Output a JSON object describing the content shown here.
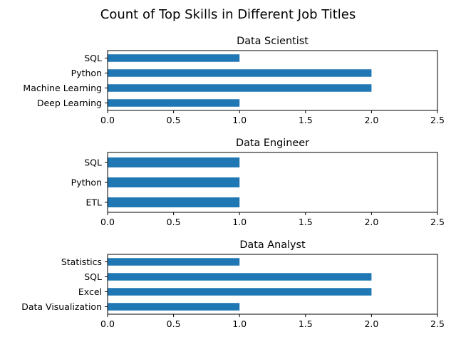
{
  "figure": {
    "title": "Count of Top Skills in Different Job Titles"
  },
  "chart_data": [
    {
      "type": "bar",
      "orientation": "horizontal",
      "title": "Data Scientist",
      "categories": [
        "SQL",
        "Python",
        "Machine Learning",
        "Deep Learning"
      ],
      "values": [
        1,
        2,
        2,
        1
      ],
      "xlim": [
        0,
        2.5
      ],
      "xticks": [
        "0.0",
        "0.5",
        "1.0",
        "1.5",
        "2.0",
        "2.5"
      ],
      "bar_color": "#1f77b4",
      "grid": false
    },
    {
      "type": "bar",
      "orientation": "horizontal",
      "title": "Data Engineer",
      "categories": [
        "SQL",
        "Python",
        "ETL"
      ],
      "values": [
        1,
        1,
        1
      ],
      "xlim": [
        0,
        2.5
      ],
      "xticks": [
        "0.0",
        "0.5",
        "1.0",
        "1.5",
        "2.0",
        "2.5"
      ],
      "bar_color": "#1f77b4",
      "grid": false
    },
    {
      "type": "bar",
      "orientation": "horizontal",
      "title": "Data Analyst",
      "categories": [
        "Statistics",
        "SQL",
        "Excel",
        "Data Visualization"
      ],
      "values": [
        1,
        2,
        2,
        1
      ],
      "xlim": [
        0,
        2.5
      ],
      "xticks": [
        "0.0",
        "0.5",
        "1.0",
        "1.5",
        "2.0",
        "2.5"
      ],
      "bar_color": "#1f77b4",
      "grid": false
    }
  ]
}
